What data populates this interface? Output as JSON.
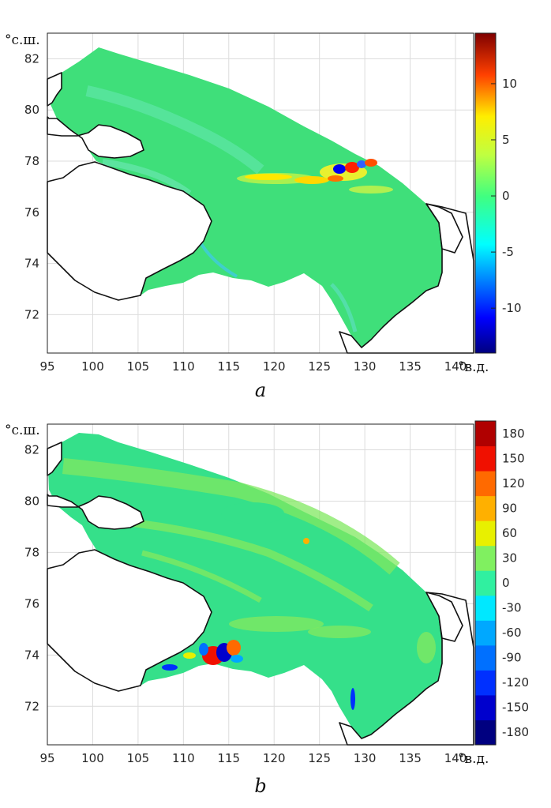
{
  "panels": [
    {
      "id": "a",
      "caption": "a",
      "lat_unit": "°с.ш.",
      "lon_unit": "°в.д.",
      "x_ticks": [
        95,
        100,
        105,
        110,
        115,
        120,
        125,
        130,
        135,
        140
      ],
      "y_ticks": [
        72,
        74,
        76,
        78,
        80,
        82
      ],
      "xlim": [
        95,
        142
      ],
      "ylim": [
        70.5,
        83
      ],
      "colorbar": {
        "type": "continuous",
        "range": [
          -14,
          14.5
        ],
        "ticks": [
          -10,
          -5,
          0,
          5,
          10
        ]
      }
    },
    {
      "id": "b",
      "caption": "b",
      "lat_unit": "°с.ш.",
      "lon_unit": "°в.д.",
      "x_ticks": [
        95,
        100,
        105,
        110,
        115,
        120,
        125,
        130,
        135,
        140
      ],
      "y_ticks": [
        72,
        74,
        76,
        78,
        80,
        82
      ],
      "xlim": [
        95,
        142
      ],
      "ylim": [
        70.5,
        83
      ],
      "colorbar": {
        "type": "discrete",
        "range": [
          -180,
          180
        ],
        "ticks": [
          -180,
          -150,
          -120,
          -90,
          -60,
          -30,
          0,
          30,
          60,
          90,
          120,
          150,
          180
        ]
      }
    }
  ],
  "colors": {
    "ocean_a": "#3fdf7a",
    "ocean_b": "#35e08a",
    "jet": [
      "#00007f",
      "#0000ff",
      "#007fff",
      "#00ffff",
      "#7fff7f",
      "#ffff00",
      "#ff7f00",
      "#ff0000",
      "#7f0000"
    ],
    "discrete": [
      "#000080",
      "#0000cd",
      "#0030ff",
      "#0070ff",
      "#00a8ff",
      "#00e8ff",
      "#30f0a0",
      "#80f060",
      "#e8f000",
      "#ffb000",
      "#ff6a00",
      "#f01000",
      "#b00000"
    ]
  }
}
